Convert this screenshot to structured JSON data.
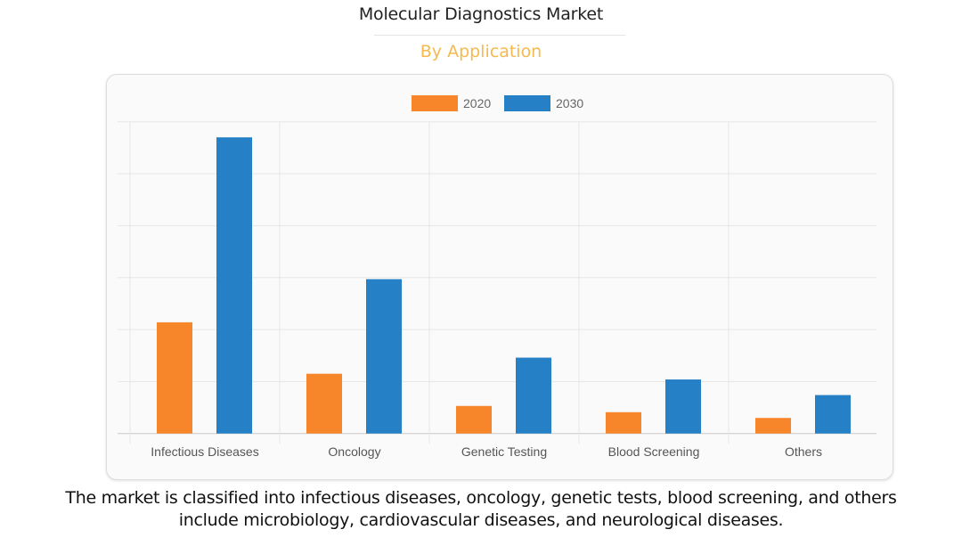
{
  "header": {
    "title": "Molecular Diagnostics Market",
    "subtitle": "By Application"
  },
  "caption": {
    "line1": "The market is classified into infectious diseases, oncology, genetic tests, blood screening, and others",
    "line2": "include microbiology, cardiovascular diseases, and neurological diseases."
  },
  "colors": {
    "series_2020": "#f7862b",
    "series_2030": "#2580c5",
    "subtitle": "#f6b94f",
    "grid": "#e6e6e6",
    "axis": "#c8c8c8"
  },
  "chart_data": {
    "type": "bar",
    "title": "Molecular Diagnostics Market",
    "subtitle": "By Application",
    "xlabel": "",
    "ylabel": "",
    "y_tick_labels_shown": false,
    "y_units": "relative (gridline units; no axis labels shown)",
    "ylim": [
      0,
      6
    ],
    "grid": true,
    "legend_position": "top-center",
    "categories": [
      "Infectious Diseases",
      "Oncology",
      "Genetic Testing",
      "Blood Screening",
      "Others"
    ],
    "series": [
      {
        "name": "2020",
        "color": "#f7862b",
        "values": [
          2.14,
          1.15,
          0.53,
          0.41,
          0.3
        ]
      },
      {
        "name": "2030",
        "color": "#2580c5",
        "values": [
          5.7,
          2.97,
          1.46,
          1.04,
          0.74
        ]
      }
    ]
  }
}
